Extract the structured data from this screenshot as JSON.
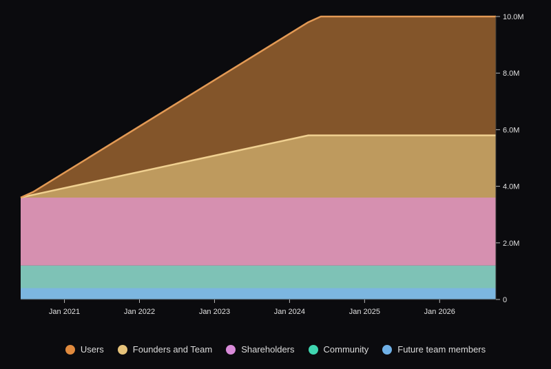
{
  "chart_data": {
    "type": "area",
    "stacked": true,
    "x_axis": {
      "ticks": [
        "Jan 2021",
        "Jan 2022",
        "Jan 2023",
        "Jan 2024",
        "Jan 2025",
        "Jan 2026"
      ],
      "range": [
        "2020-06",
        "2026-10"
      ]
    },
    "y_axis": {
      "position": "right",
      "ticks": [
        "0",
        "2.0M",
        "4.0M",
        "6.0M",
        "8.0M",
        "10.0M"
      ],
      "tick_values": [
        0,
        2000000,
        4000000,
        6000000,
        8000000,
        10000000
      ],
      "ylim": [
        0,
        10000000
      ]
    },
    "grid": false,
    "legend_position": "bottom",
    "x": [
      "2020-06",
      "2020-08",
      "2024-04",
      "2024-06",
      "2026-10"
    ],
    "series": [
      {
        "name": "Future team members",
        "color": "#7cb6e0",
        "values": [
          400000,
          400000,
          400000,
          400000,
          400000
        ]
      },
      {
        "name": "Community",
        "color": "#7ec2b6",
        "values": [
          800000,
          800000,
          800000,
          800000,
          800000
        ]
      },
      {
        "name": "Shareholders",
        "color": "#d690b0",
        "values": [
          2400000,
          2400000,
          2400000,
          2400000,
          2400000
        ]
      },
      {
        "name": "Founders and Team",
        "color": "#be9a5e",
        "values": [
          0,
          100000,
          2200000,
          2200000,
          2200000
        ]
      },
      {
        "name": "Users",
        "color": "#83552a",
        "values": [
          0,
          100000,
          4000000,
          4200000,
          4200000
        ]
      }
    ],
    "legend": [
      {
        "name": "Users",
        "color": "#e08a3e"
      },
      {
        "name": "Founders and Team",
        "color": "#e6c27a"
      },
      {
        "name": "Shareholders",
        "color": "#d88ad8"
      },
      {
        "name": "Community",
        "color": "#3fd6b0"
      },
      {
        "name": "Future team members",
        "color": "#6fb0e6"
      }
    ],
    "line_colors": {
      "Users": "#e39a55",
      "Founders and Team": "#f0d090"
    }
  }
}
